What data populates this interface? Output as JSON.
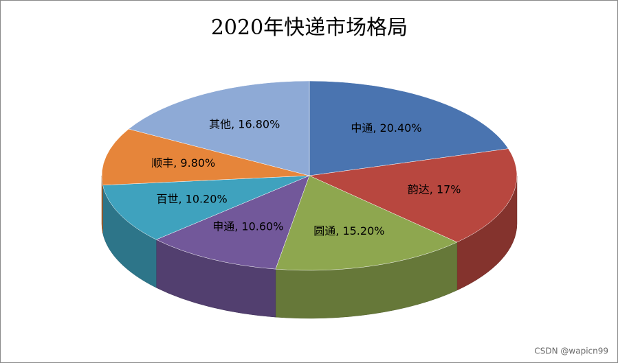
{
  "chart_data": {
    "type": "pie3d",
    "title": "2020年快递市场格局",
    "values": [
      20.4,
      17,
      15.2,
      10.6,
      10.2,
      9.8,
      16.8
    ],
    "value_labels": [
      "中通, 20.40%",
      "韵达, 17%",
      "圆通, 15.20%",
      "申通, 10.60%",
      "百世, 10.20%",
      "顺丰, 9.80%",
      "其他, 16.80%"
    ],
    "colors": [
      "#4a74b0",
      "#b8473f",
      "#8ea74f",
      "#72589a",
      "#3fa2be",
      "#e6853a",
      "#8eaad6"
    ]
  },
  "watermark": "CSDN @wapicn99"
}
